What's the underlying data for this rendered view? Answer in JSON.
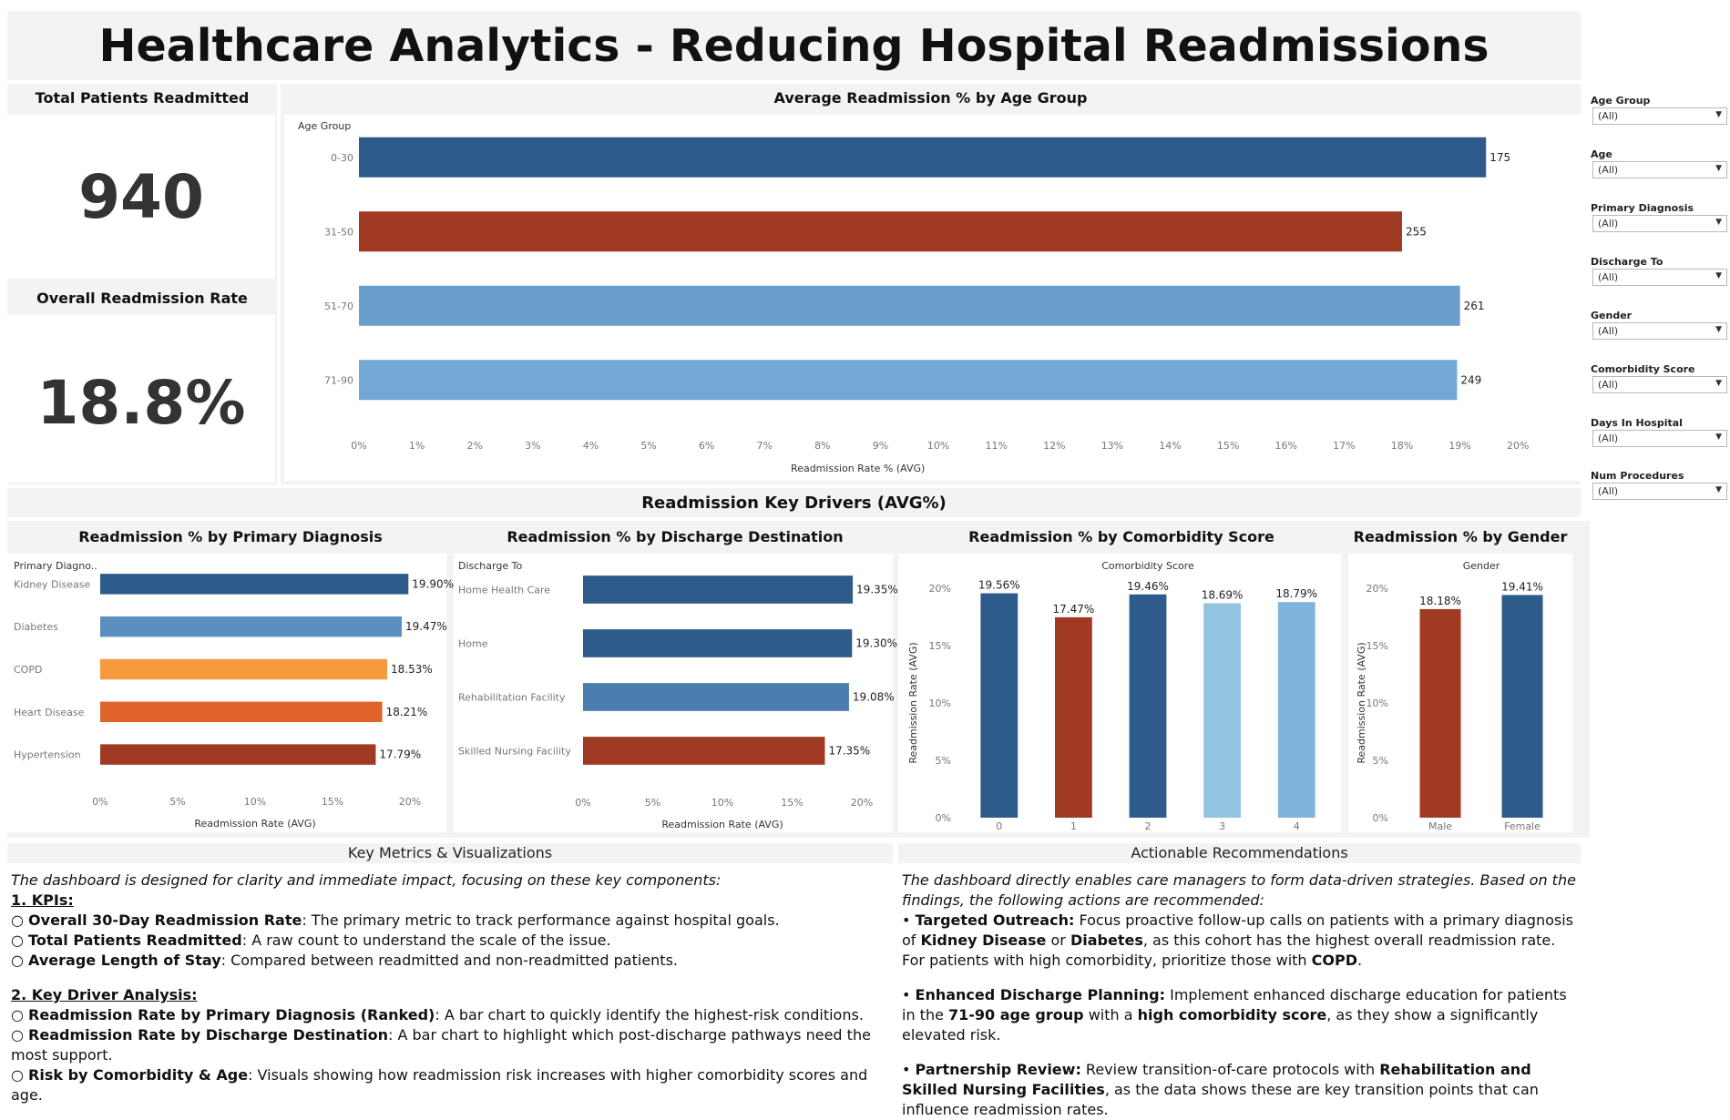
{
  "title": "Healthcare Analytics - Reducing Hospital Readmissions",
  "kpis": {
    "total_label": "Total Patients Readmitted",
    "total_value": "940",
    "rate_label": "Overall Readmission Rate",
    "rate_value": "18.8%"
  },
  "filters": [
    {
      "label": "Age Group",
      "value": "(All)"
    },
    {
      "label": "Age",
      "value": "(All)"
    },
    {
      "label": "Primary Diagnosis",
      "value": "(All)"
    },
    {
      "label": "Discharge To",
      "value": "(All)"
    },
    {
      "label": "Gender",
      "value": "(All)"
    },
    {
      "label": "Comorbidity Score",
      "value": "(All)"
    },
    {
      "label": "Days In Hospital",
      "value": "(All)"
    },
    {
      "label": "Num Procedures",
      "value": "(All)"
    }
  ],
  "drivers_title": "Readmission Key Drivers (AVG%)",
  "chart_data": [
    {
      "type": "bar",
      "orientation": "horizontal",
      "title": "Average Readmission % by Age Group",
      "ylabel": "Age Group",
      "xlabel": "Readmission Rate % (AVG)",
      "categories": [
        "0-30",
        "31-50",
        "51-70",
        "71-90"
      ],
      "values": [
        19.45,
        18.0,
        19.0,
        18.95
      ],
      "data_labels": [
        "175",
        "255",
        "261",
        "249"
      ],
      "colors": [
        "#2e5b8a",
        "#a13a22",
        "#6a9fcb",
        "#74a8d4"
      ],
      "ticks": [
        "0%",
        "1%",
        "2%",
        "3%",
        "4%",
        "5%",
        "6%",
        "7%",
        "8%",
        "9%",
        "10%",
        "11%",
        "12%",
        "13%",
        "14%",
        "15%",
        "16%",
        "17%",
        "18%",
        "19%",
        "20%"
      ],
      "xlim": [
        0,
        20.5
      ]
    },
    {
      "type": "bar",
      "orientation": "horizontal",
      "title": "Readmission % by Primary Diagnosis",
      "ylabel": "Primary Diagno..",
      "xlabel": "Readmission Rate (AVG)",
      "categories": [
        "Kidney Disease",
        "Diabetes",
        "COPD",
        "Heart Disease",
        "Hypertension"
      ],
      "values": [
        19.9,
        19.47,
        18.53,
        18.21,
        17.79
      ],
      "data_labels": [
        "19.90%",
        "19.47%",
        "18.53%",
        "18.21%",
        "17.79%"
      ],
      "colors": [
        "#2e5b8a",
        "#5b8fc0",
        "#f79a3e",
        "#e0642a",
        "#a13a22"
      ],
      "ticks": [
        "0%",
        "5%",
        "10%",
        "15%",
        "20%"
      ],
      "xlim": [
        0,
        20
      ]
    },
    {
      "type": "bar",
      "orientation": "horizontal",
      "title": "Readmission % by Discharge Destination",
      "ylabel": "Discharge To",
      "xlabel": "Readmission Rate (AVG)",
      "categories": [
        "Home Health Care",
        "Home",
        "Rehabilitation Facility",
        "Skilled Nursing Facility"
      ],
      "values": [
        19.35,
        19.3,
        19.08,
        17.35
      ],
      "data_labels": [
        "19.35%",
        "19.30%",
        "19.08%",
        "17.35%"
      ],
      "colors": [
        "#2e5b8a",
        "#2e5b8a",
        "#4c7db1",
        "#a13a22"
      ],
      "ticks": [
        "0%",
        "5%",
        "10%",
        "15%",
        "20%"
      ],
      "xlim": [
        0,
        20
      ]
    },
    {
      "type": "bar",
      "orientation": "vertical",
      "title": "Readmission % by Comorbidity Score",
      "xlabel": "Comorbidity Score",
      "ylabel": "Readmission Rate (AVG)",
      "categories": [
        "0",
        "1",
        "2",
        "3",
        "4"
      ],
      "values": [
        19.56,
        17.47,
        19.46,
        18.69,
        18.79
      ],
      "data_labels": [
        "19.56%",
        "17.47%",
        "19.46%",
        "18.69%",
        "18.79%"
      ],
      "colors": [
        "#2e5b8a",
        "#a13a22",
        "#2e5b8a",
        "#93c4e0",
        "#7fb5dc"
      ],
      "ticks": [
        "0%",
        "5%",
        "10%",
        "15%",
        "20%"
      ],
      "ylim": [
        0,
        20
      ]
    },
    {
      "type": "bar",
      "orientation": "vertical",
      "title": "Readmission % by Gender",
      "xlabel": "Gender",
      "ylabel": "Readmission Rate (AVG)",
      "categories": [
        "Male",
        "Female"
      ],
      "values": [
        18.18,
        19.41
      ],
      "data_labels": [
        "18.18%",
        "19.41%"
      ],
      "colors": [
        "#a13a22",
        "#2e5b8a"
      ],
      "ticks": [
        "0%",
        "5%",
        "10%",
        "15%",
        "20%"
      ],
      "ylim": [
        0,
        20
      ]
    }
  ],
  "metrics": {
    "heading": "Key Metrics & Visualizations",
    "intro": "The dashboard is designed for clarity and immediate impact, focusing on these key components:",
    "kpi_heading": "1. KPIs:",
    "kpi_items": [
      {
        "bold": "Overall 30-Day Readmission Rate",
        "text": ": The primary metric to track performance against hospital goals."
      },
      {
        "bold": "Total Patients Readmitted",
        "text": ": A raw count to understand the scale of the issue."
      },
      {
        "bold": "Average Length of Stay",
        "text": ": Compared between readmitted and non-readmitted patients."
      }
    ],
    "driver_heading": "2. Key Driver Analysis:",
    "driver_items": [
      {
        "bold": "Readmission Rate by Primary Diagnosis (Ranked)",
        "text": ": A bar chart to quickly identify the highest-risk conditions."
      },
      {
        "bold": "Readmission Rate by Discharge Destination",
        "text": ": A bar chart to highlight which post-discharge pathways need the most support."
      },
      {
        "bold": "Risk by Comorbidity & Age",
        "text": ": Visuals showing how readmission risk increases with higher comorbidity scores and age."
      }
    ]
  },
  "recommendations": {
    "heading": "Actionable Recommendations",
    "intro": "The dashboard directly enables care managers to form data-driven strategies. Based on the findings, the following actions are recommended:",
    "r1_bold": "Targeted Outreach:",
    "r1_text1": " Focus proactive follow-up calls on patients with a primary diagnosis of ",
    "r1_b2": "Kidney Disease",
    "r1_text2": " or ",
    "r1_b3": "Diabetes",
    "r1_text3": ", as this cohort has the highest overall readmission rate. For patients with high comorbidity, prioritize those with ",
    "r1_b4": "COPD",
    "r1_text4": ".",
    "r2_bold": "Enhanced Discharge Planning:",
    "r2_text1": " Implement enhanced discharge education for patients in the ",
    "r2_b2": "71-90 age group",
    "r2_text2": " with a ",
    "r2_b3": "high comorbidity score",
    "r2_text3": ", as they show a significantly elevated risk.",
    "r3_bold": "Partnership Review:",
    "r3_text1": " Review transition-of-care protocols with ",
    "r3_b2": "Rehabilitation and Skilled Nursing Facilities",
    "r3_text2": ", as the data shows these are key transition points that can influence readmission rates."
  },
  "colors": {
    "dark_blue": "#2e5b8a",
    "rust": "#a13a22",
    "light_blue": "#6a9fcb",
    "orange": "#f79a3e"
  }
}
